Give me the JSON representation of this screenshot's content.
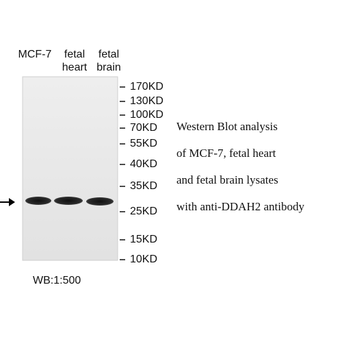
{
  "lanes": [
    {
      "lines": [
        "MCF-7"
      ]
    },
    {
      "lines": [
        "fetal",
        "heart"
      ]
    },
    {
      "lines": [
        "fetal",
        "brain"
      ]
    }
  ],
  "markers": [
    "170KD",
    "130KD",
    "100KD",
    "70KD",
    "55KD",
    "40KD",
    "35KD",
    "25KD",
    "15KD",
    "10KD"
  ],
  "caption": [
    "Western Blot analysis",
    "of MCF-7, fetal heart",
    "and fetal brain lysates",
    "with anti-DDAH2 antibody"
  ],
  "footer": "WB:1:500"
}
